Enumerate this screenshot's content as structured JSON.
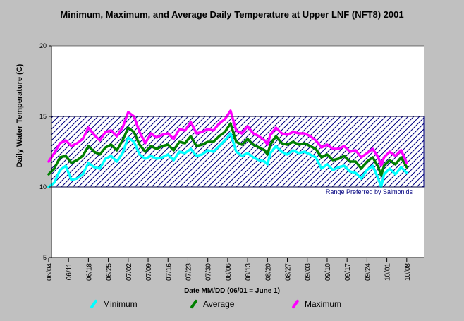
{
  "chart_data": {
    "type": "line",
    "title": "Minimum, Maximum, and Average Daily Temperature at Upper LNF (NFT8) 2001",
    "xlabel": "Date MM/DD (06/01 = June 1)",
    "ylabel": "Daily Water Temperature (C)",
    "ylim": [
      5,
      20
    ],
    "yticks": [
      5,
      10,
      15,
      20
    ],
    "xrange_day": [
      156,
      287
    ],
    "xticks": [
      {
        "label": "06/04",
        "day": 155
      },
      {
        "label": "06/11",
        "day": 162
      },
      {
        "label": "06/18",
        "day": 169
      },
      {
        "label": "06/25",
        "day": 176
      },
      {
        "label": "07/02",
        "day": 183
      },
      {
        "label": "07/09",
        "day": 190
      },
      {
        "label": "07/16",
        "day": 197
      },
      {
        "label": "07/23",
        "day": 204
      },
      {
        "label": "07/30",
        "day": 211
      },
      {
        "label": "08/06",
        "day": 218
      },
      {
        "label": "08/13",
        "day": 225
      },
      {
        "label": "08/20",
        "day": 232
      },
      {
        "label": "08/27",
        "day": 239
      },
      {
        "label": "09/03",
        "day": 246
      },
      {
        "label": "09/10",
        "day": 253
      },
      {
        "label": "09/17",
        "day": 260
      },
      {
        "label": "09/24",
        "day": 267
      },
      {
        "label": "10/01",
        "day": 274
      },
      {
        "label": "10/08",
        "day": 281
      }
    ],
    "band": {
      "low": 10,
      "high": 15,
      "label": "Range Preferred by Salmonids",
      "color": "#000080"
    },
    "legend_position": "bottom",
    "grid": false,
    "series": [
      {
        "name": "Minimum",
        "color": "#00ffff",
        "points": [
          [
            155,
            10.0
          ],
          [
            157,
            10.3
          ],
          [
            159,
            11.2
          ],
          [
            161,
            11.5
          ],
          [
            163,
            10.5
          ],
          [
            165,
            10.6
          ],
          [
            167,
            10.9
          ],
          [
            169,
            11.7
          ],
          [
            171,
            11.4
          ],
          [
            173,
            11.3
          ],
          [
            175,
            12.0
          ],
          [
            177,
            12.2
          ],
          [
            179,
            11.8
          ],
          [
            181,
            12.4
          ],
          [
            183,
            13.5
          ],
          [
            185,
            13.2
          ],
          [
            187,
            12.3
          ],
          [
            189,
            12.0
          ],
          [
            191,
            12.2
          ],
          [
            193,
            12.0
          ],
          [
            195,
            12.1
          ],
          [
            197,
            12.3
          ],
          [
            199,
            11.9
          ],
          [
            201,
            12.5
          ],
          [
            203,
            12.4
          ],
          [
            205,
            12.7
          ],
          [
            207,
            12.2
          ],
          [
            209,
            12.3
          ],
          [
            211,
            12.6
          ],
          [
            213,
            12.5
          ],
          [
            215,
            12.9
          ],
          [
            217,
            13.3
          ],
          [
            219,
            13.8
          ],
          [
            221,
            12.5
          ],
          [
            223,
            12.2
          ],
          [
            225,
            12.4
          ],
          [
            227,
            12.1
          ],
          [
            229,
            11.9
          ],
          [
            231,
            11.8
          ],
          [
            232,
            11.6
          ],
          [
            233,
            12.4
          ],
          [
            235,
            12.9
          ],
          [
            237,
            12.5
          ],
          [
            239,
            12.3
          ],
          [
            241,
            12.6
          ],
          [
            243,
            12.4
          ],
          [
            245,
            12.5
          ],
          [
            247,
            12.3
          ],
          [
            249,
            12.1
          ],
          [
            251,
            11.3
          ],
          [
            253,
            11.6
          ],
          [
            255,
            11.2
          ],
          [
            257,
            11.4
          ],
          [
            259,
            11.5
          ],
          [
            261,
            11.1
          ],
          [
            263,
            11.0
          ],
          [
            265,
            10.6
          ],
          [
            267,
            11.2
          ],
          [
            269,
            11.5
          ],
          [
            271,
            10.6
          ],
          [
            272,
            10.0
          ],
          [
            273,
            10.9
          ],
          [
            275,
            11.3
          ],
          [
            277,
            10.9
          ],
          [
            279,
            11.4
          ],
          [
            281,
            11.0
          ]
        ]
      },
      {
        "name": "Average",
        "color": "#008000",
        "points": [
          [
            155,
            10.9
          ],
          [
            157,
            11.3
          ],
          [
            159,
            12.1
          ],
          [
            161,
            12.2
          ],
          [
            163,
            11.7
          ],
          [
            165,
            11.9
          ],
          [
            167,
            12.2
          ],
          [
            169,
            12.9
          ],
          [
            171,
            12.5
          ],
          [
            173,
            12.3
          ],
          [
            175,
            12.8
          ],
          [
            177,
            13.0
          ],
          [
            179,
            12.6
          ],
          [
            181,
            13.3
          ],
          [
            183,
            14.2
          ],
          [
            185,
            13.9
          ],
          [
            187,
            13.0
          ],
          [
            189,
            12.5
          ],
          [
            191,
            12.9
          ],
          [
            193,
            12.7
          ],
          [
            195,
            12.9
          ],
          [
            197,
            13.0
          ],
          [
            199,
            12.6
          ],
          [
            201,
            13.2
          ],
          [
            203,
            13.1
          ],
          [
            205,
            13.6
          ],
          [
            207,
            12.9
          ],
          [
            209,
            13.0
          ],
          [
            211,
            13.2
          ],
          [
            213,
            13.2
          ],
          [
            215,
            13.6
          ],
          [
            217,
            13.9
          ],
          [
            219,
            14.5
          ],
          [
            221,
            13.2
          ],
          [
            223,
            13.0
          ],
          [
            225,
            13.4
          ],
          [
            227,
            13.0
          ],
          [
            229,
            12.8
          ],
          [
            231,
            12.6
          ],
          [
            232,
            12.3
          ],
          [
            233,
            13.0
          ],
          [
            235,
            13.6
          ],
          [
            237,
            13.1
          ],
          [
            239,
            13.0
          ],
          [
            241,
            13.2
          ],
          [
            243,
            13.0
          ],
          [
            245,
            13.1
          ],
          [
            247,
            12.9
          ],
          [
            249,
            12.7
          ],
          [
            251,
            12.1
          ],
          [
            253,
            12.3
          ],
          [
            255,
            11.9
          ],
          [
            257,
            12.0
          ],
          [
            259,
            12.2
          ],
          [
            261,
            11.8
          ],
          [
            263,
            11.8
          ],
          [
            265,
            11.3
          ],
          [
            267,
            11.8
          ],
          [
            269,
            12.1
          ],
          [
            271,
            11.4
          ],
          [
            272,
            10.8
          ],
          [
            273,
            11.5
          ],
          [
            275,
            11.9
          ],
          [
            277,
            11.6
          ],
          [
            279,
            12.1
          ],
          [
            281,
            11.4
          ]
        ]
      },
      {
        "name": "Maximum",
        "color": "#ff00ff",
        "points": [
          [
            155,
            11.8
          ],
          [
            157,
            12.4
          ],
          [
            159,
            13.1
          ],
          [
            161,
            13.3
          ],
          [
            163,
            12.9
          ],
          [
            165,
            13.1
          ],
          [
            167,
            13.4
          ],
          [
            169,
            14.2
          ],
          [
            171,
            13.7
          ],
          [
            173,
            13.3
          ],
          [
            175,
            13.9
          ],
          [
            177,
            14.0
          ],
          [
            179,
            13.6
          ],
          [
            181,
            14.2
          ],
          [
            183,
            15.3
          ],
          [
            185,
            15.0
          ],
          [
            187,
            13.9
          ],
          [
            189,
            13.1
          ],
          [
            191,
            13.8
          ],
          [
            193,
            13.5
          ],
          [
            195,
            13.7
          ],
          [
            197,
            13.8
          ],
          [
            199,
            13.4
          ],
          [
            201,
            14.1
          ],
          [
            203,
            14.0
          ],
          [
            205,
            14.6
          ],
          [
            207,
            13.8
          ],
          [
            209,
            13.9
          ],
          [
            211,
            14.1
          ],
          [
            213,
            14.0
          ],
          [
            215,
            14.5
          ],
          [
            217,
            14.8
          ],
          [
            219,
            15.4
          ],
          [
            221,
            14.0
          ],
          [
            223,
            13.8
          ],
          [
            225,
            14.3
          ],
          [
            227,
            13.8
          ],
          [
            229,
            13.6
          ],
          [
            231,
            13.3
          ],
          [
            232,
            13.0
          ],
          [
            233,
            13.7
          ],
          [
            235,
            14.2
          ],
          [
            237,
            13.8
          ],
          [
            239,
            13.7
          ],
          [
            241,
            13.9
          ],
          [
            243,
            13.8
          ],
          [
            245,
            13.8
          ],
          [
            247,
            13.6
          ],
          [
            249,
            13.3
          ],
          [
            251,
            12.8
          ],
          [
            253,
            13.0
          ],
          [
            255,
            12.7
          ],
          [
            257,
            12.7
          ],
          [
            259,
            12.9
          ],
          [
            261,
            12.5
          ],
          [
            263,
            12.6
          ],
          [
            265,
            12.1
          ],
          [
            267,
            12.4
          ],
          [
            269,
            12.7
          ],
          [
            271,
            12.1
          ],
          [
            272,
            11.5
          ],
          [
            273,
            12.1
          ],
          [
            275,
            12.5
          ],
          [
            277,
            12.2
          ],
          [
            279,
            12.6
          ],
          [
            281,
            11.7
          ]
        ]
      }
    ]
  }
}
